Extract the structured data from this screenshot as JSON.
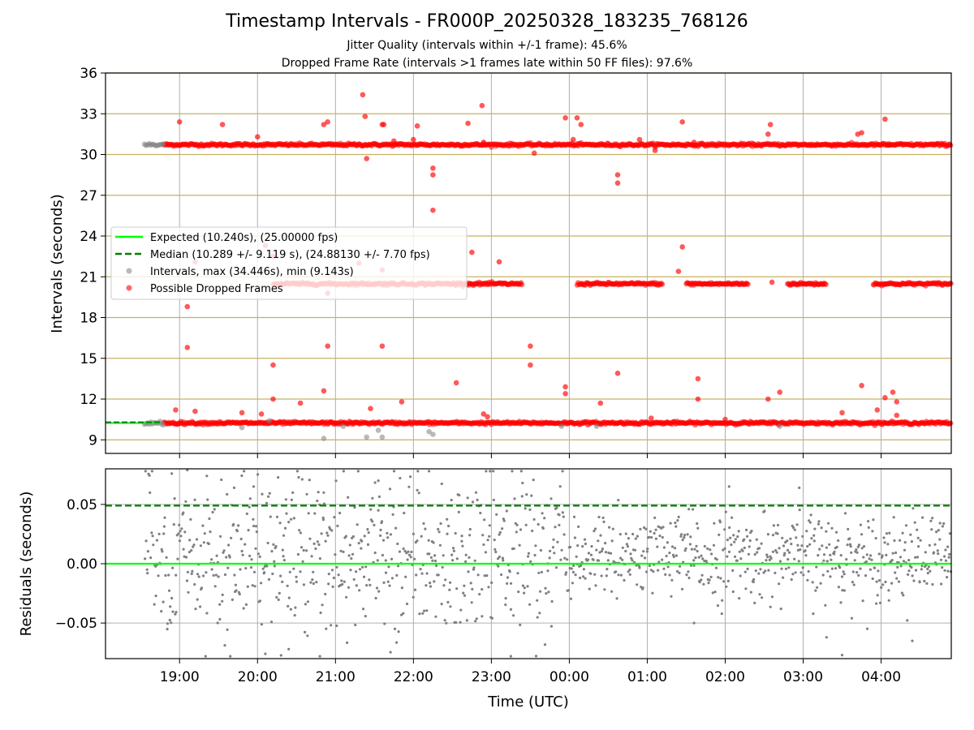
{
  "figure": {
    "title": "Timestamp Intervals - FR000P_20250328_183235_768126",
    "subtitle_1": "Jitter Quality (intervals within +/-1 frame): 45.6%",
    "subtitle_2": "Dropped Frame Rate (intervals >1 frames late within 50 FF files): 97.6%"
  },
  "colors": {
    "expected": "#00ff00",
    "median": "#008000",
    "intervals": "#808080",
    "dropped": "#ff0000",
    "hgrid_top": "#c8b063",
    "grid": "#b0b0b0"
  },
  "chart_data": [
    {
      "type": "scatter",
      "panel": "intervals",
      "ylabel": "Intervals (seconds)",
      "xlabel": "",
      "x_unit": "hours since 00:00 UTC of first day",
      "xlim": [
        18.05,
        28.9
      ],
      "ylim": [
        8,
        36
      ],
      "yticks": [
        9,
        12,
        15,
        18,
        21,
        24,
        27,
        30,
        33,
        36
      ],
      "xticks": [
        "19:00",
        "20:00",
        "21:00",
        "22:00",
        "23:00",
        "00:00",
        "01:00",
        "02:00",
        "03:00",
        "04:00"
      ],
      "xtick_values": [
        19,
        20,
        21,
        22,
        23,
        24,
        25,
        26,
        27,
        28
      ],
      "grid": true,
      "legend_position": "center-left",
      "legend": [
        {
          "label": "Expected (10.240s), (25.00000 fps)",
          "style": "solid-line",
          "color": "#00ff00"
        },
        {
          "label": "Median (10.289 +/- 9.119 s), (24.88130 +/- 7.70 fps)",
          "style": "dashed-line",
          "color": "#008000"
        },
        {
          "label": "Intervals, max (34.446s), min (9.143s)",
          "style": "marker",
          "color": "#808080"
        },
        {
          "label": "Possible Dropped Frames",
          "style": "marker",
          "color": "#ff0000"
        }
      ],
      "expected_interval": 10.24,
      "median_interval": 10.289,
      "bands": [
        {
          "name": "Possible Dropped Frames",
          "color": "#ff0000",
          "y": 30.72,
          "x_ranges": [
            [
              18.8,
              28.9
            ]
          ]
        },
        {
          "name": "Possible Dropped Frames",
          "color": "#ff0000",
          "y": 20.48,
          "x_ranges": [
            [
              20.2,
              22.3
            ],
            [
              22.3,
              23.4
            ],
            [
              24.1,
              25.2
            ],
            [
              25.5,
              26.3
            ],
            [
              26.8,
              27.3
            ],
            [
              27.9,
              28.9
            ]
          ]
        },
        {
          "name": "Possible Dropped Frames",
          "color": "#ff0000",
          "y": 10.24,
          "x_ranges": [
            [
              18.8,
              28.9
            ]
          ]
        },
        {
          "name": "Intervals",
          "color": "#808080",
          "y": 30.72,
          "x_ranges": [
            [
              18.55,
              18.8
            ]
          ]
        },
        {
          "name": "Intervals",
          "color": "#808080",
          "y": 10.24,
          "x_ranges": [
            [
              18.55,
              18.8
            ]
          ]
        }
      ],
      "series": [
        {
          "name": "Intervals",
          "color": "#808080",
          "points": [
            [
              20.85,
              9.1
            ],
            [
              21.4,
              9.2
            ],
            [
              21.6,
              9.2
            ],
            [
              22.25,
              9.4
            ],
            [
              22.2,
              9.6
            ],
            [
              21.55,
              9.7
            ],
            [
              19.8,
              9.9
            ],
            [
              20.15,
              10.4
            ],
            [
              23.9,
              10.0
            ],
            [
              24.35,
              10.0
            ],
            [
              26.7,
              10.0
            ],
            [
              21.1,
              10.0
            ]
          ]
        },
        {
          "name": "Possible Dropped Frames",
          "color": "#ff0000",
          "points": [
            [
              19.0,
              32.4
            ],
            [
              19.55,
              32.2
            ],
            [
              20.0,
              31.3
            ],
            [
              20.85,
              32.2
            ],
            [
              20.9,
              32.4
            ],
            [
              21.35,
              34.4
            ],
            [
              21.38,
              32.8
            ],
            [
              21.4,
              29.7
            ],
            [
              21.6,
              32.2
            ],
            [
              21.62,
              32.2
            ],
            [
              21.75,
              31.0
            ],
            [
              22.05,
              32.1
            ],
            [
              22.0,
              31.1
            ],
            [
              22.25,
              29.0
            ],
            [
              22.25,
              28.5
            ],
            [
              22.25,
              25.9
            ],
            [
              22.7,
              32.3
            ],
            [
              22.88,
              33.6
            ],
            [
              22.9,
              30.9
            ],
            [
              23.55,
              30.1
            ],
            [
              23.95,
              32.7
            ],
            [
              24.1,
              32.7
            ],
            [
              24.15,
              32.2
            ],
            [
              24.05,
              31.1
            ],
            [
              24.62,
              28.5
            ],
            [
              24.62,
              27.9
            ],
            [
              24.9,
              31.1
            ],
            [
              25.1,
              30.3
            ],
            [
              25.45,
              32.4
            ],
            [
              25.6,
              30.9
            ],
            [
              26.55,
              31.5
            ],
            [
              26.58,
              32.2
            ],
            [
              27.7,
              31.5
            ],
            [
              27.75,
              31.6
            ],
            [
              28.05,
              32.6
            ],
            [
              28.1,
              30.7
            ],
            [
              19.2,
              22.1
            ],
            [
              20.1,
              23.3
            ],
            [
              20.2,
              22.5
            ],
            [
              21.3,
              22.0
            ],
            [
              21.6,
              21.5
            ],
            [
              22.75,
              22.8
            ],
            [
              23.1,
              22.1
            ],
            [
              25.4,
              21.4
            ],
            [
              25.45,
              23.2
            ],
            [
              26.6,
              20.6
            ],
            [
              20.9,
              19.8
            ],
            [
              19.1,
              18.8
            ],
            [
              19.1,
              15.8
            ],
            [
              20.9,
              15.9
            ],
            [
              21.6,
              15.9
            ],
            [
              23.5,
              15.9
            ],
            [
              23.5,
              14.5
            ],
            [
              20.2,
              14.5
            ],
            [
              24.62,
              13.9
            ],
            [
              25.65,
              13.5
            ],
            [
              22.55,
              13.2
            ],
            [
              27.75,
              13.0
            ],
            [
              23.95,
              12.9
            ],
            [
              23.95,
              12.4
            ],
            [
              20.85,
              12.6
            ],
            [
              26.7,
              12.5
            ],
            [
              28.15,
              12.5
            ],
            [
              20.2,
              12.0
            ],
            [
              20.55,
              11.7
            ],
            [
              21.85,
              11.8
            ],
            [
              25.65,
              12.0
            ],
            [
              26.55,
              12.0
            ],
            [
              28.05,
              12.1
            ],
            [
              28.2,
              11.8
            ],
            [
              24.4,
              11.7
            ],
            [
              18.95,
              11.2
            ],
            [
              19.2,
              11.1
            ],
            [
              19.8,
              11.0
            ],
            [
              20.05,
              10.9
            ],
            [
              21.45,
              11.3
            ],
            [
              22.9,
              10.9
            ],
            [
              22.95,
              10.7
            ],
            [
              27.5,
              11.0
            ],
            [
              27.95,
              11.2
            ],
            [
              28.2,
              10.8
            ],
            [
              25.05,
              10.6
            ],
            [
              26.0,
              10.5
            ]
          ]
        }
      ]
    },
    {
      "type": "scatter",
      "panel": "residuals",
      "ylabel": "Residuals (seconds)",
      "xlabel": "Time (UTC)",
      "xlim": [
        18.05,
        28.9
      ],
      "ylim": [
        -0.08,
        0.08
      ],
      "yticks": [
        -0.05,
        0.0,
        0.05
      ],
      "ytick_labels": [
        "−0.05",
        "0.00",
        "0.05"
      ],
      "xticks": [
        "19:00",
        "20:00",
        "21:00",
        "22:00",
        "23:00",
        "00:00",
        "01:00",
        "02:00",
        "03:00",
        "04:00"
      ],
      "xtick_values": [
        19,
        20,
        21,
        22,
        23,
        24,
        25,
        26,
        27,
        28
      ],
      "grid": true,
      "reference_lines": [
        {
          "y": 0.0,
          "style": "solid",
          "color": "#00ff00"
        },
        {
          "y": 0.049,
          "style": "dashed",
          "color": "#008000"
        }
      ],
      "series": [
        {
          "name": "Residuals",
          "color": "#808080",
          "x_range": [
            18.55,
            28.9
          ],
          "count": 1200,
          "spread_early": 0.035,
          "spread_late": 0.018,
          "center": 0.005,
          "outliers": [
            [
              18.9,
              0.076
            ],
            [
              19.1,
              0.079
            ],
            [
              19.35,
              0.074
            ],
            [
              19.65,
              -0.078
            ],
            [
              19.7,
              0.064
            ],
            [
              19.95,
              0.065
            ],
            [
              20.1,
              -0.076
            ],
            [
              20.4,
              -0.072
            ],
            [
              20.8,
              -0.078
            ],
            [
              20.85,
              0.06
            ],
            [
              21.55,
              0.07
            ],
            [
              21.7,
              0.063
            ],
            [
              22.05,
              0.062
            ],
            [
              22.2,
              0.078
            ],
            [
              23.25,
              -0.078
            ],
            [
              23.4,
              0.068
            ],
            [
              25.6,
              -0.05
            ],
            [
              26.05,
              0.065
            ],
            [
              26.95,
              0.064
            ],
            [
              27.3,
              -0.062
            ],
            [
              27.5,
              -0.077
            ],
            [
              28.4,
              -0.065
            ]
          ]
        }
      ]
    }
  ]
}
